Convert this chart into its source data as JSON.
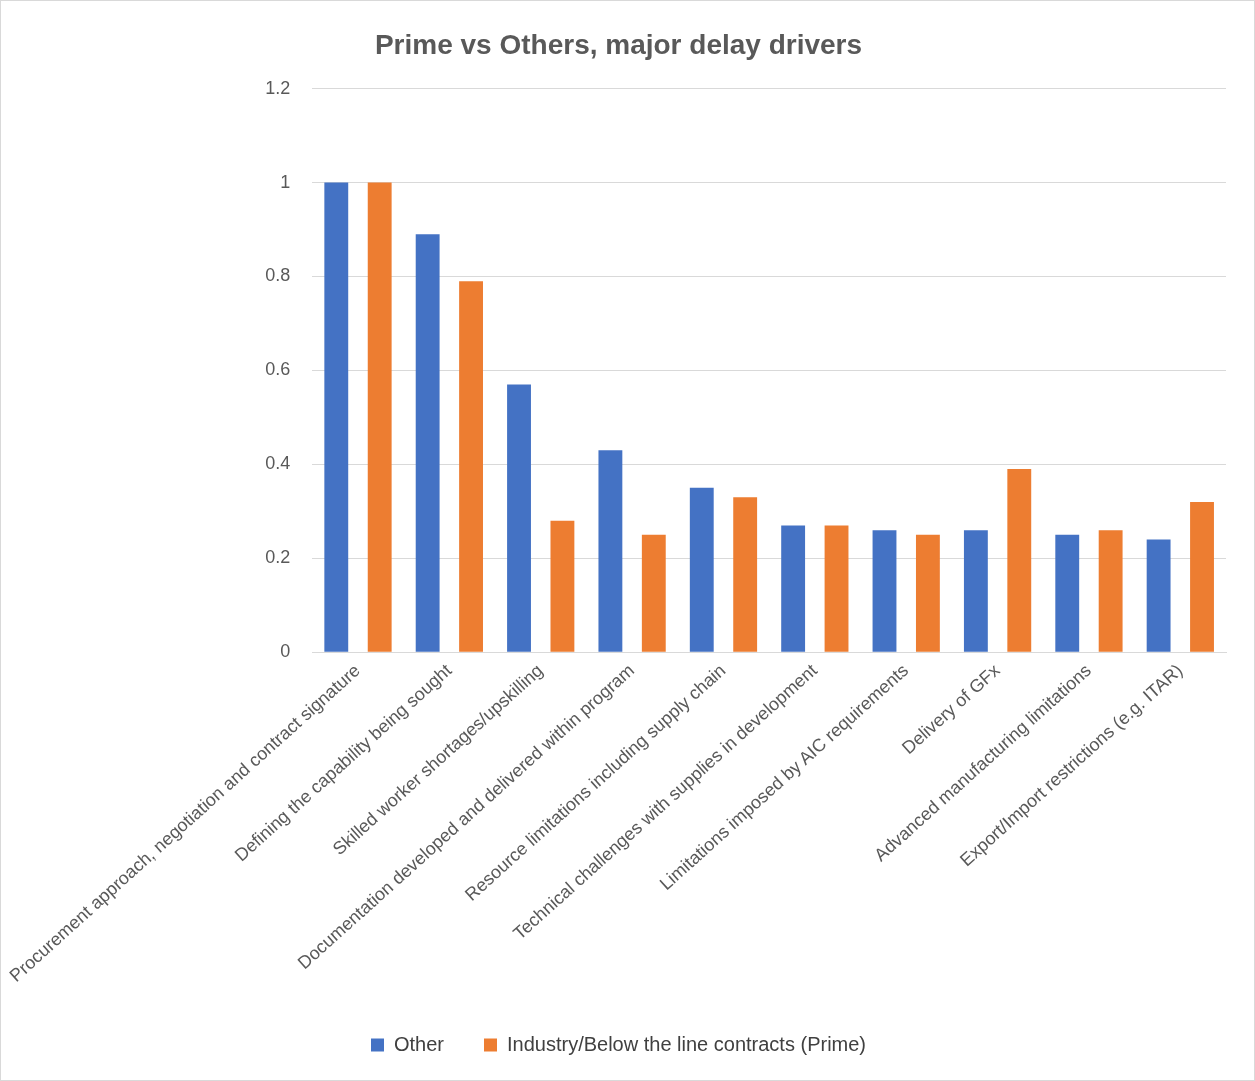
{
  "chart_data": {
    "type": "bar",
    "title": "Prime vs Others, major delay drivers",
    "categories": [
      "Procurement approach, negotiation and contract signature",
      "Defining the capability being sought",
      "Skilled worker shortages/upskilling",
      "Documentation developed and delivered within program",
      "Resource limitations including supply chain",
      "Technical challenges with supplies in development",
      "Limitations imposed by AIC requirements",
      "Delivery of GFx",
      "Advanced manufacturing limitations",
      "Export/Import restrictions (e.g. ITAR)"
    ],
    "series": [
      {
        "name": "Other",
        "color": "#4472c4",
        "values": [
          1.0,
          0.89,
          0.57,
          0.43,
          0.35,
          0.27,
          0.26,
          0.26,
          0.25,
          0.24
        ]
      },
      {
        "name": "Industry/Below the line contracts (Prime)",
        "color": "#ed7d31",
        "values": [
          1.0,
          0.79,
          0.28,
          0.25,
          0.33,
          0.27,
          0.25,
          0.39,
          0.26,
          0.32
        ]
      }
    ],
    "ylim": [
      0,
      1.2
    ],
    "yticks": [
      0,
      0.2,
      0.4,
      0.6,
      0.8,
      1,
      1.2
    ],
    "grid": "y",
    "legend": "bottom"
  }
}
